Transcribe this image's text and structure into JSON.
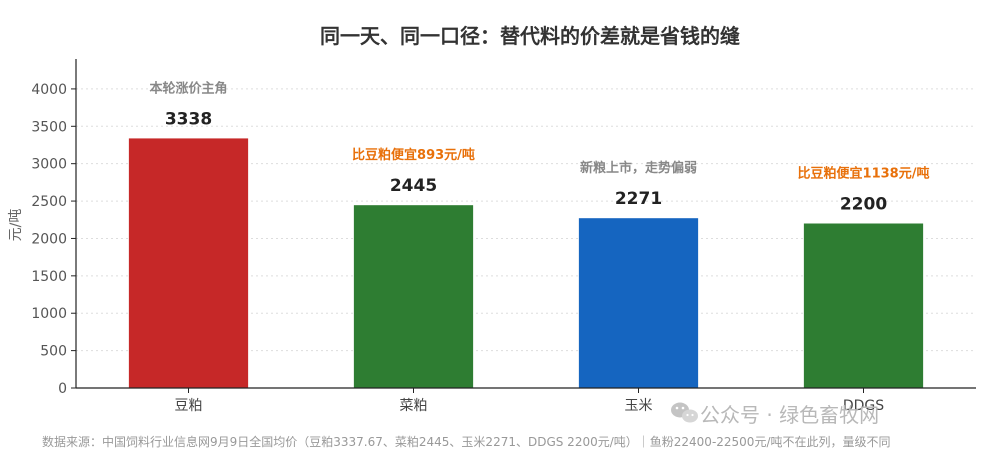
{
  "chart_data": {
    "type": "bar",
    "title": "同一天、同一口径：替代料的价差就是省钱的缝",
    "ylabel": "元/吨",
    "xlabel": "",
    "ylim": [
      0,
      4400
    ],
    "yticks": [
      0,
      500,
      1000,
      1500,
      2000,
      2500,
      3000,
      3500,
      4000
    ],
    "grid": true,
    "categories": [
      "豆粕",
      "菜粕",
      "玉米",
      "DDGS"
    ],
    "values": [
      3338,
      2445,
      2271,
      2200
    ],
    "value_labels": [
      "3338",
      "2445",
      "2271",
      "2200"
    ],
    "colors": [
      "#c62828",
      "#2e7d32",
      "#1565c0",
      "#2e7d32"
    ],
    "annotations": [
      {
        "text": "本轮涨价主角",
        "style": "gray"
      },
      {
        "text": "比豆粕便宜893元/吨",
        "style": "orange"
      },
      {
        "text": "新粮上市，走势偏弱",
        "style": "gray"
      },
      {
        "text": "比豆粕便宜1138元/吨",
        "style": "orange"
      }
    ]
  },
  "footer": "数据来源：中国饲料行业信息网9月9日全国均价（豆粕3337.67、菜粕2445、玉米2271、DDGS 2200元/吨）｜鱼粉22400-22500元/吨不在此列，量级不同",
  "watermark": "公众号 · 绿色畜牧网",
  "wechat_icon": "wechat-icon"
}
